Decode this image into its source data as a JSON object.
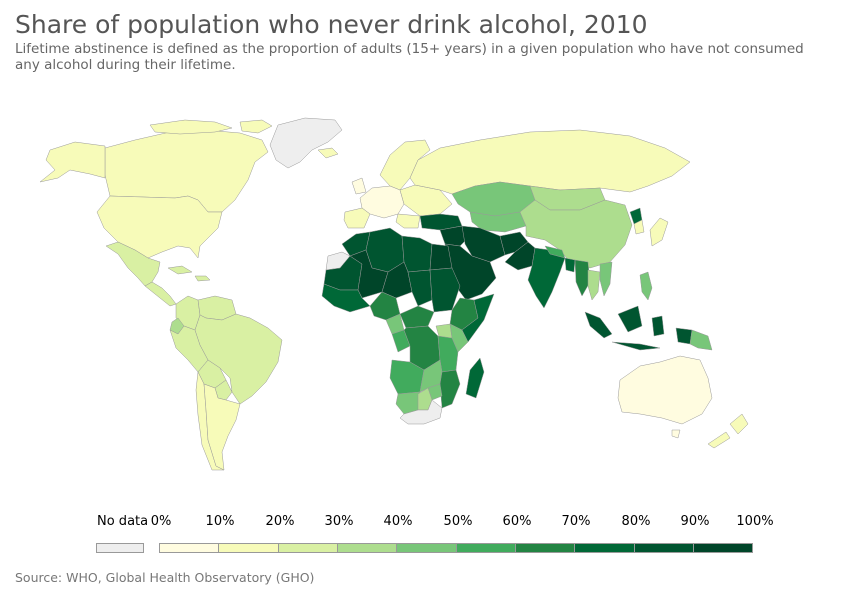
{
  "title": "Share of population who never drink alcohol, 2010",
  "subtitle_lines": [
    "Lifetime abstinence is defined as the proportion of adults (15+ years) in a given population who have not consumed",
    "any alcohol during their lifetime."
  ],
  "source": "Source: WHO, Global Health Observatory (GHO)",
  "colors": {
    "no_data": "#eeeeee",
    "border": "#999999",
    "bins": [
      "#fffce0",
      "#f7fbb9",
      "#d9f0a3",
      "#addd8e",
      "#78c679",
      "#41ab5d",
      "#238443",
      "#006837",
      "#005530",
      "#004529"
    ]
  },
  "legend": {
    "no_data_label": "No data",
    "tick_labels": [
      "0%",
      "10%",
      "20%",
      "30%",
      "40%",
      "50%",
      "60%",
      "70%",
      "80%",
      "90%",
      "100%"
    ]
  },
  "map_regions": [
    {
      "name": "Greenland",
      "bin": null
    },
    {
      "name": "Canada",
      "bin": 1
    },
    {
      "name": "Alaska",
      "bin": 1
    },
    {
      "name": "United States",
      "bin": 1
    },
    {
      "name": "Mexico",
      "bin": 2
    },
    {
      "name": "Central America",
      "bin": 2
    },
    {
      "name": "Caribbean",
      "bin": 2
    },
    {
      "name": "Colombia",
      "bin": 2
    },
    {
      "name": "Venezuela",
      "bin": 2
    },
    {
      "name": "Ecuador",
      "bin": 3
    },
    {
      "name": "Peru",
      "bin": 2
    },
    {
      "name": "Brazil",
      "bin": 2
    },
    {
      "name": "Bolivia",
      "bin": 2
    },
    {
      "name": "Paraguay",
      "bin": 2
    },
    {
      "name": "Chile",
      "bin": 1
    },
    {
      "name": "Argentina",
      "bin": 1
    },
    {
      "name": "Iceland",
      "bin": 1
    },
    {
      "name": "Scandinavia",
      "bin": 1
    },
    {
      "name": "Western Europe",
      "bin": 0
    },
    {
      "name": "Eastern Europe",
      "bin": 1
    },
    {
      "name": "Iberia",
      "bin": 1
    },
    {
      "name": "Russia",
      "bin": 1
    },
    {
      "name": "Kazakhstan",
      "bin": 4
    },
    {
      "name": "Central Asia",
      "bin": 4
    },
    {
      "name": "Mongolia",
      "bin": 3
    },
    {
      "name": "China",
      "bin": 3
    },
    {
      "name": "Korea",
      "bin": 1
    },
    {
      "name": "North Korea",
      "bin": 7
    },
    {
      "name": "Japan",
      "bin": 1
    },
    {
      "name": "Turkey",
      "bin": 8
    },
    {
      "name": "Iran",
      "bin": 9
    },
    {
      "name": "Afghanistan",
      "bin": 9
    },
    {
      "name": "Pakistan",
      "bin": 9
    },
    {
      "name": "Arabian Peninsula",
      "bin": 9
    },
    {
      "name": "Levant",
      "bin": 9
    },
    {
      "name": "India",
      "bin": 7
    },
    {
      "name": "Nepal",
      "bin": 5
    },
    {
      "name": "Bangladesh",
      "bin": 7
    },
    {
      "name": "Myanmar",
      "bin": 6
    },
    {
      "name": "Thailand",
      "bin": 3
    },
    {
      "name": "Vietnam",
      "bin": 4
    },
    {
      "name": "Philippines",
      "bin": 4
    },
    {
      "name": "Indonesia",
      "bin": 8
    },
    {
      "name": "Papua New Guinea",
      "bin": 4
    },
    {
      "name": "Australia",
      "bin": 0
    },
    {
      "name": "New Zealand",
      "bin": 1
    },
    {
      "name": "Morocco",
      "bin": 8
    },
    {
      "name": "Algeria",
      "bin": 8
    },
    {
      "name": "Libya",
      "bin": 8
    },
    {
      "name": "Egypt",
      "bin": 9
    },
    {
      "name": "Western Sahara",
      "bin": null
    },
    {
      "name": "Mauritania",
      "bin": 8
    },
    {
      "name": "Mali",
      "bin": 9
    },
    {
      "name": "Niger",
      "bin": 9
    },
    {
      "name": "Chad",
      "bin": 8
    },
    {
      "name": "Sudan",
      "bin": 8
    },
    {
      "name": "Nigeria",
      "bin": 6
    },
    {
      "name": "West Africa coast",
      "bin": 7
    },
    {
      "name": "Cameroon",
      "bin": 4
    },
    {
      "name": "Central African Republic",
      "bin": 6
    },
    {
      "name": "Ethiopia",
      "bin": 6
    },
    {
      "name": "Somalia",
      "bin": 7
    },
    {
      "name": "DR Congo",
      "bin": 6
    },
    {
      "name": "Congo",
      "bin": 5
    },
    {
      "name": "Uganda",
      "bin": 3
    },
    {
      "name": "Kenya",
      "bin": 4
    },
    {
      "name": "Tanzania",
      "bin": 5
    },
    {
      "name": "Angola",
      "bin": 5
    },
    {
      "name": "Zambia",
      "bin": 4
    },
    {
      "name": "Mozambique",
      "bin": 6
    },
    {
      "name": "Namibia",
      "bin": 4
    },
    {
      "name": "Botswana",
      "bin": 3
    },
    {
      "name": "Zimbabwe",
      "bin": 4
    },
    {
      "name": "South Africa",
      "bin": null
    },
    {
      "name": "Madagascar",
      "bin": 7
    }
  ]
}
